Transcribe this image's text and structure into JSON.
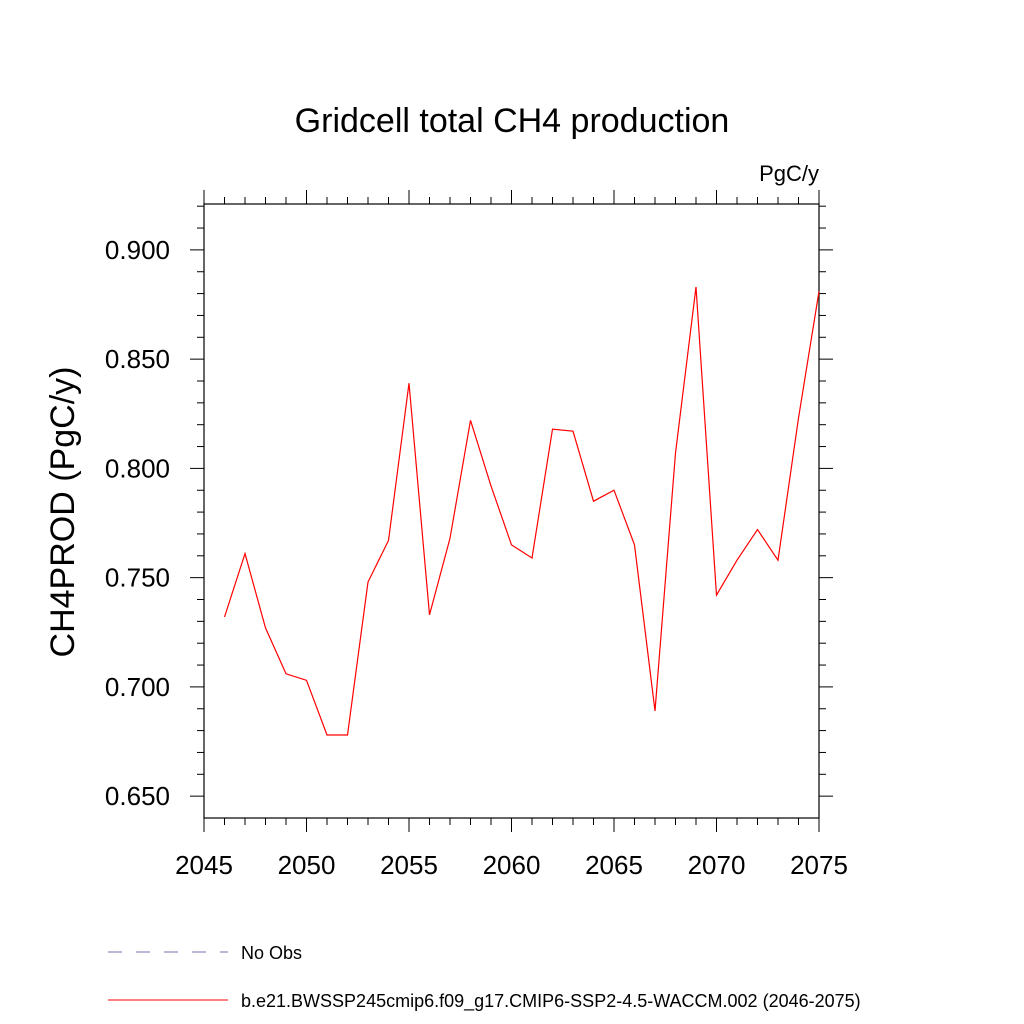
{
  "chart_data": {
    "type": "line",
    "title": "Gridcell total CH4 production",
    "units_label": "PgC/y",
    "ylabel": "CH4PROD  (PgC/y)",
    "xlabel": "",
    "xlim": [
      2045,
      2075
    ],
    "ylim": [
      0.64,
      0.921
    ],
    "x_ticks": [
      2045,
      2050,
      2055,
      2060,
      2065,
      2070,
      2075
    ],
    "y_ticks": [
      "0.650",
      "0.700",
      "0.750",
      "0.800",
      "0.850",
      "0.900"
    ],
    "grid": false,
    "legend_position": "bottom",
    "series": [
      {
        "name": "b.e21.BWSSP245cmip6.f09_g17.CMIP6-SSP2-4.5-WACCM.002 (2046-2075)",
        "color": "#ff0000",
        "style": "solid",
        "x": [
          2046,
          2047,
          2048,
          2049,
          2050,
          2051,
          2052,
          2053,
          2054,
          2055,
          2056,
          2057,
          2058,
          2059,
          2060,
          2061,
          2062,
          2063,
          2064,
          2065,
          2066,
          2067,
          2068,
          2069,
          2070,
          2071,
          2072,
          2073,
          2074,
          2075
        ],
        "y": [
          0.732,
          0.761,
          0.727,
          0.706,
          0.703,
          0.678,
          0.678,
          0.748,
          0.767,
          0.839,
          0.733,
          0.768,
          0.822,
          0.792,
          0.765,
          0.759,
          0.818,
          0.817,
          0.785,
          0.79,
          0.765,
          0.689,
          0.807,
          0.883,
          0.742,
          0.758,
          0.772,
          0.758,
          0.823,
          0.881
        ]
      }
    ],
    "legend": [
      {
        "label": "No Obs",
        "color": "#7a6fb0",
        "style": "dashed"
      },
      {
        "label": "b.e21.BWSSP245cmip6.f09_g17.CMIP6-SSP2-4.5-WACCM.002 (2046-2075)",
        "color": "#ff0000",
        "style": "solid"
      }
    ]
  }
}
